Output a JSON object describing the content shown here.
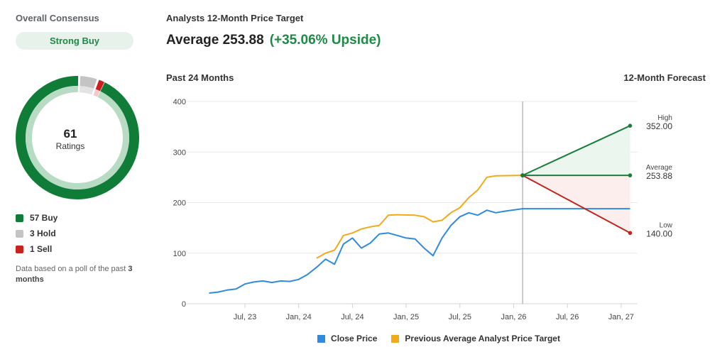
{
  "consensus": {
    "title": "Overall Consensus",
    "rating": "Strong Buy",
    "total_ratings": "61",
    "ratings_label": "Ratings",
    "breakdown": [
      {
        "label": "57 Buy",
        "count": 57,
        "color": "#0f7d37"
      },
      {
        "label": "3 Hold",
        "count": 3,
        "color": "#c4c4c4"
      },
      {
        "label": "1 Sell",
        "count": 1,
        "color": "#c9211e"
      }
    ],
    "note_prefix": "Data based on a poll of the past",
    "note_bold": "3 months"
  },
  "price_target": {
    "title": "Analysts 12-Month Price Target",
    "average_label": "Average 253.88",
    "upside_label": "(+35.06% Upside)",
    "past_label": "Past 24 Months",
    "forecast_label": "12-Month Forecast"
  },
  "colors": {
    "close_price": "#2f8ae0",
    "analyst_target": "#f2a91a",
    "high": "#1b7d3c",
    "average": "#1b7d3c",
    "low": "#c0261f",
    "high_fill": "#eaf6ee",
    "low_fill": "#fdeeee"
  },
  "chart_data": {
    "type": "line",
    "title": "Analysts 12-Month Price Target",
    "xlabel": "",
    "ylabel": "",
    "ylim": [
      0,
      400
    ],
    "yticks": [
      "0",
      "100",
      "200",
      "300",
      "400"
    ],
    "xticks": [
      "Jul, 23",
      "Jan, 24",
      "Jul, 24",
      "Jan, 25",
      "Jul, 25",
      "Jan, 26",
      "Jul, 26",
      "Jan, 27"
    ],
    "legend": [
      "Close Price",
      "Previous Average Analyst Price Target"
    ],
    "series": [
      {
        "name": "Close Price",
        "points": [
          [
            "2023-03",
            21
          ],
          [
            "2023-04",
            23
          ],
          [
            "2023-05",
            27
          ],
          [
            "2023-06",
            29
          ],
          [
            "2023-07",
            39
          ],
          [
            "2023-08",
            43
          ],
          [
            "2023-09",
            45
          ],
          [
            "2023-10",
            42
          ],
          [
            "2023-11",
            45
          ],
          [
            "2023-12",
            44
          ],
          [
            "2024-01",
            48
          ],
          [
            "2024-02",
            58
          ],
          [
            "2024-03",
            72
          ],
          [
            "2024-04",
            88
          ],
          [
            "2024-05",
            78
          ],
          [
            "2024-06",
            118
          ],
          [
            "2024-07",
            130
          ],
          [
            "2024-08",
            110
          ],
          [
            "2024-09",
            120
          ],
          [
            "2024-10",
            138
          ],
          [
            "2024-11",
            140
          ],
          [
            "2024-12",
            135
          ],
          [
            "2025-01",
            130
          ],
          [
            "2025-02",
            128
          ],
          [
            "2025-03",
            110
          ],
          [
            "2025-04",
            95
          ],
          [
            "2025-05",
            130
          ],
          [
            "2025-06",
            155
          ],
          [
            "2025-07",
            172
          ],
          [
            "2025-08",
            180
          ],
          [
            "2025-09",
            175
          ],
          [
            "2025-10",
            185
          ],
          [
            "2025-11",
            180
          ],
          [
            "2025-12",
            183
          ],
          [
            "2026-02",
            188
          ]
        ]
      },
      {
        "name": "Previous Average Analyst Price Target",
        "points": [
          [
            "2024-03",
            90
          ],
          [
            "2024-04",
            100
          ],
          [
            "2024-05",
            106
          ],
          [
            "2024-06",
            135
          ],
          [
            "2024-07",
            140
          ],
          [
            "2024-08",
            148
          ],
          [
            "2024-09",
            152
          ],
          [
            "2024-10",
            155
          ],
          [
            "2024-11",
            175
          ],
          [
            "2024-12",
            176
          ],
          [
            "2025-02",
            175
          ],
          [
            "2025-03",
            172
          ],
          [
            "2025-04",
            162
          ],
          [
            "2025-05",
            165
          ],
          [
            "2025-06",
            180
          ],
          [
            "2025-07",
            190
          ],
          [
            "2025-08",
            210
          ],
          [
            "2025-09",
            225
          ],
          [
            "2025-10",
            250
          ],
          [
            "2025-11",
            253
          ],
          [
            "2026-02",
            253.88
          ]
        ]
      }
    ],
    "forecast": {
      "start": [
        "2026-02",
        253.88
      ],
      "end_date": "2027-02",
      "high": {
        "label": "High",
        "value": 352.0,
        "display": "352.00"
      },
      "average": {
        "label": "Average",
        "value": 253.88,
        "display": "253.88"
      },
      "low": {
        "label": "Low",
        "value": 140.0,
        "display": "140.00"
      },
      "close_flat": 188
    }
  }
}
